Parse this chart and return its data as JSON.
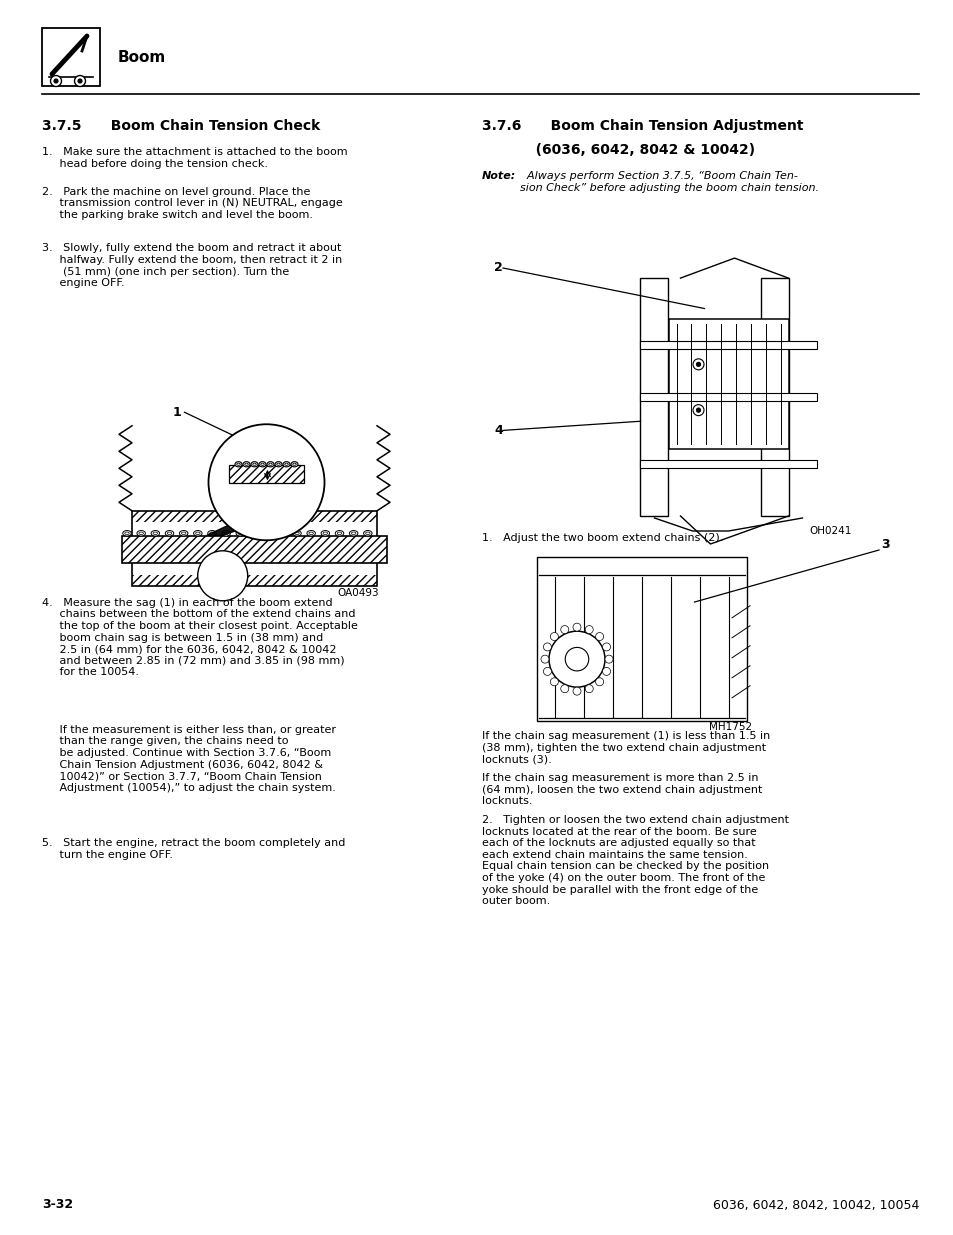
{
  "page_width": 9.54,
  "page_height": 12.35,
  "bg_color": "#ffffff",
  "header_text": "Boom",
  "left_section_title": "3.7.5      Boom Chain Tension Check",
  "right_section_title_line1": "3.7.6      Boom Chain Tension Adjustment",
  "right_section_title_line2": "           (6036, 6042, 8042 & 10042)",
  "left_item1": "1.   Make sure the attachment is attached to the boom\n     head before doing the tension check.",
  "left_item2": "2.   Park the machine on level ground. Place the\n     transmission control lever in (N) NEUTRAL, engage\n     the parking brake switch and level the boom.",
  "left_item3": "3.   Slowly, fully extend the boom and retract it about\n     halfway. Fully extend the boom, then retract it 2 in\n      (51 mm) (one inch per section). Turn the\n     engine OFF.",
  "left_item4a": "4.   Measure the sag (1) in each of the boom extend\n     chains between the bottom of the extend chains and\n     the top of the boom at their closest point. Acceptable\n     boom chain sag is between 1.5 in (38 mm) and\n     2.5 in (64 mm) for the 6036, 6042, 8042 & 10042\n     and between 2.85 in (72 mm) and 3.85 in (98 mm)\n     for the 10054.",
  "left_item4b": "     If the measurement is either less than, or greater\n     than the range given, the chains need to\n     be adjusted. Continue with Section 3.7.6, “Boom\n     Chain Tension Adjustment (6036, 6042, 8042 &\n     10042)” or Section 3.7.7, “Boom Chain Tension\n     Adjustment (10054),” to adjust the chain system.",
  "left_item5": "5.   Start the engine, retract the boom completely and\n     turn the engine OFF.",
  "right_note_bold": "Note:",
  "right_note_italic": "  Always perform Section 3.7.5, “Boom Chain Ten-\nsion Check” before adjusting the boom chain tension.",
  "right_item1": "1.   Adjust the two boom extend chains (2).",
  "right_item2a": "If the chain sag measurement (1) is less than 1.5 in\n(38 mm), tighten the two extend chain adjustment\nlocknuts (3).",
  "right_item2b": "If the chain sag measurement is more than 2.5 in\n(64 mm), loosen the two extend chain adjustment\nlocknuts.",
  "right_item3": "2.   Tighten or loosen the two extend chain adjustment\nlocknuts located at the rear of the boom. Be sure\neach of the locknuts are adjusted equally so that\neach extend chain maintains the same tension.\nEqual chain tension can be checked by the position\nof the yoke (4) on the outer boom. The front of the\nyoke should be parallel with the front edge of the\nouter boom.",
  "footer_left": "3-32",
  "footer_right": "6036, 6042, 8042, 10042, 10054",
  "diagram1_caption": "OA0493",
  "diagram2_caption": "OH0241",
  "diagram3_caption": "MH1752"
}
